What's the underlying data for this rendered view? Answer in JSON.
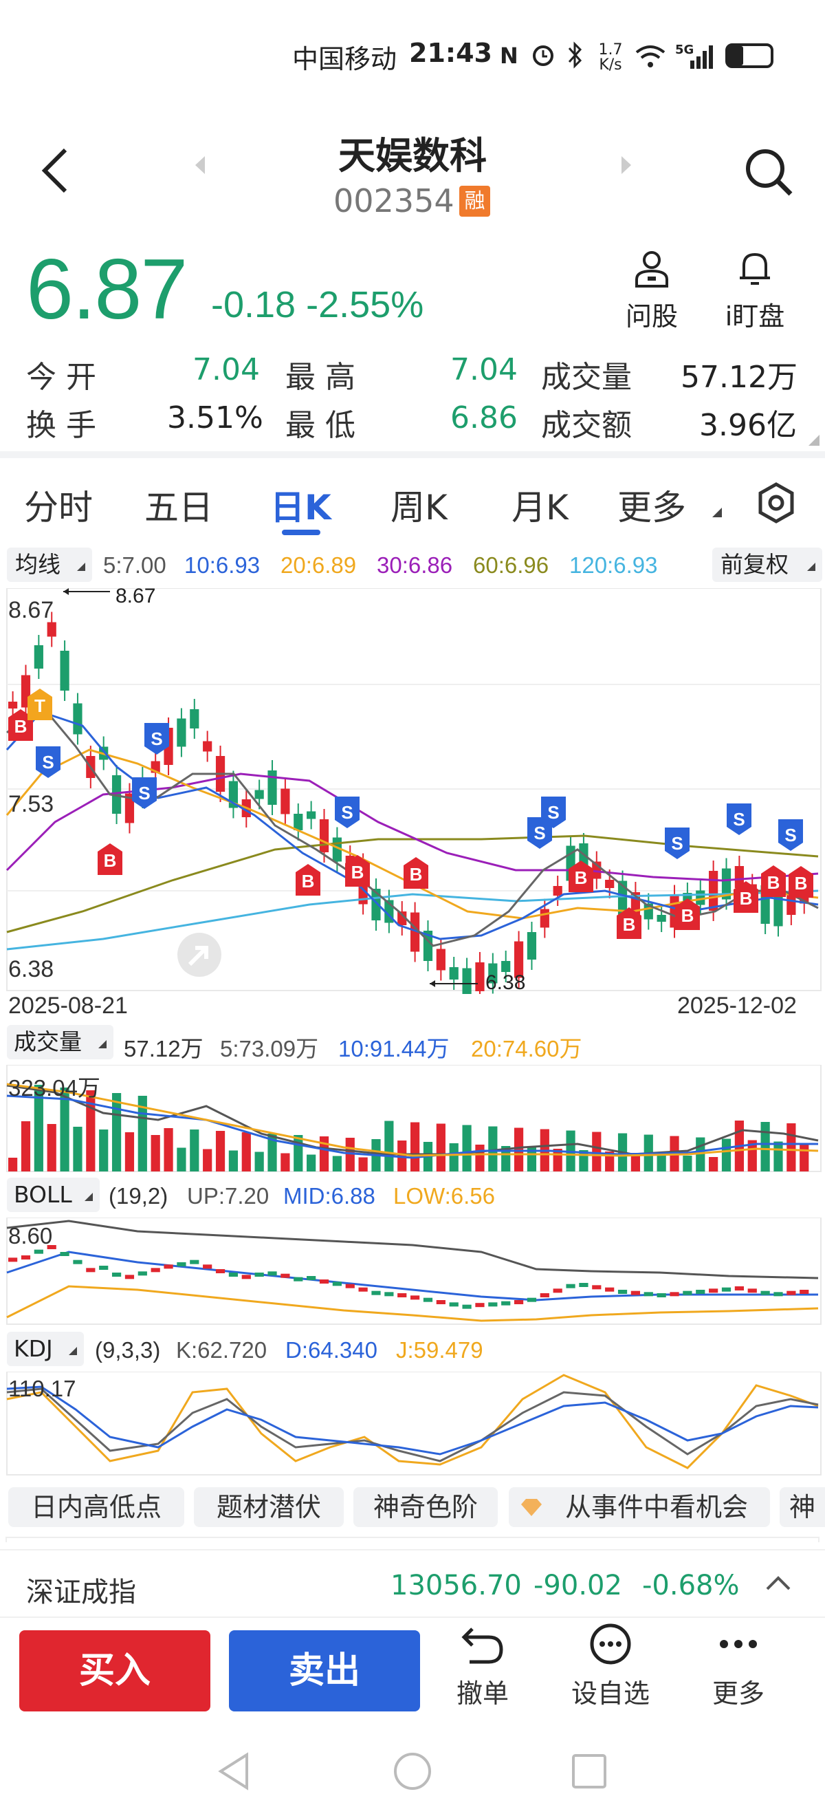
{
  "status_bar": {
    "carrier": "中国移动",
    "time": "21:43",
    "net_speed_top": "1.7",
    "net_speed_bottom": "K/s",
    "network": "5G"
  },
  "header": {
    "title": "天娱数科",
    "code": "002354",
    "badge": "融"
  },
  "quote": {
    "price": "6.87",
    "change": "-0.18",
    "change_pct": "-2.55%"
  },
  "quick_actions": [
    {
      "label": "问股",
      "icon": "person-icon"
    },
    {
      "label": "i盯盘",
      "icon": "bell-icon"
    }
  ],
  "stats": {
    "row1": [
      {
        "label": "今  开",
        "value": "7.04"
      },
      {
        "label": "最  高",
        "value": "7.04"
      },
      {
        "label": "成交量",
        "value": "57.12万"
      }
    ],
    "row2": [
      {
        "label": "换  手",
        "value": "3.51%"
      },
      {
        "label": "最  低",
        "value": "6.86"
      },
      {
        "label": "成交额",
        "value": "3.96亿"
      }
    ]
  },
  "tabs": [
    "分时",
    "五日",
    "日K",
    "周K",
    "月K",
    "更多"
  ],
  "active_tab": "日K",
  "ma_bar": {
    "selector": "均线",
    "ma5": "5:7.00",
    "ma10": "10:6.93",
    "ma20": "20:6.89",
    "ma30": "30:6.86",
    "ma60": "60:6.96",
    "ma120": "120:6.93",
    "adjust": "前复权"
  },
  "kline": {
    "y_max": "8.67",
    "y_mid": "7.53",
    "y_min": "6.38",
    "high_mark": "8.67",
    "low_mark": "6.38",
    "date_start": "2025-08-21",
    "date_end": "2025-12-02"
  },
  "volume_bar": {
    "selector": "成交量",
    "vol": "57.12万",
    "ma5": "5:73.09万",
    "ma10": "10:91.44万",
    "ma20": "20:74.60万",
    "y_max": "323.04万"
  },
  "boll_bar": {
    "selector": "BOLL",
    "params": "(19,2)",
    "up": "UP:7.20",
    "mid": "MID:6.88",
    "low": "LOW:6.56",
    "y_max": "8.60"
  },
  "kdj_bar": {
    "selector": "KDJ",
    "params": "(9,3,3)",
    "k": "K:62.720",
    "d": "D:64.340",
    "j": "J:59.479",
    "y_max": "110.17"
  },
  "feature_pills": [
    "日内高低点",
    "题材潜伏",
    "神奇色阶",
    "从事件中看机会",
    "神"
  ],
  "index_bar": {
    "name": "深证成指",
    "value": "13056.70",
    "change": "-90.02",
    "pct": "-0.68%"
  },
  "bottom": {
    "buy": "买入",
    "sell": "卖出",
    "actions": [
      {
        "label": "撤单",
        "icon": "undo-icon"
      },
      {
        "label": "设自选",
        "icon": "more-circle-icon"
      },
      {
        "label": "更多",
        "icon": "dots-icon"
      }
    ]
  },
  "colors": {
    "up": "#e0262f",
    "down": "#1d9e6c",
    "accent": "#2b63d9",
    "ma5": "#555555",
    "ma10": "#2b63d9",
    "ma20": "#f0a81e",
    "ma30": "#9b1fb8",
    "ma60": "#8a8a1e",
    "ma120": "#45b4e0"
  }
}
